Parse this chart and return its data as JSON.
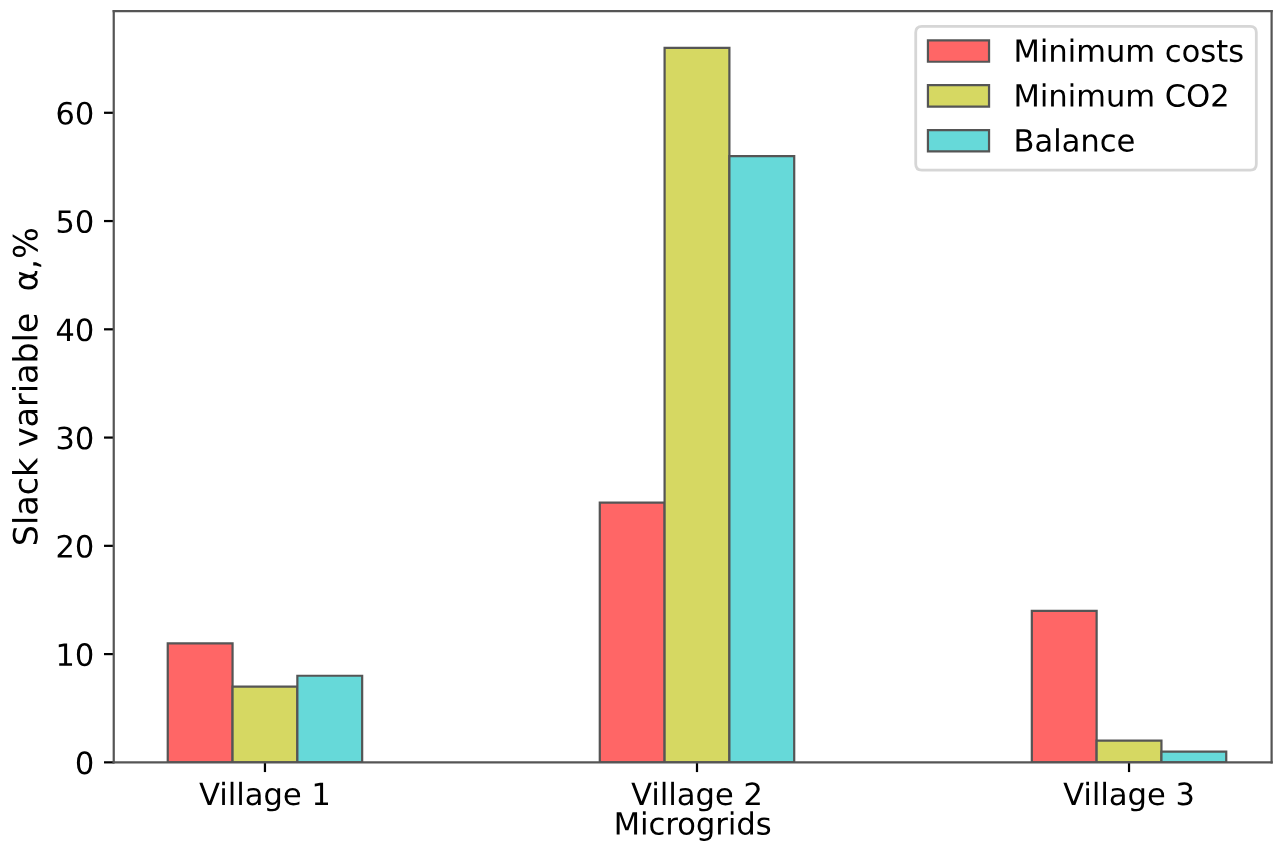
{
  "chart_data": {
    "type": "bar",
    "xlabel": "Microgrids",
    "ylabel": "Slack variable  α,%",
    "categories": [
      "Village 1",
      "Village 2",
      "Village 3"
    ],
    "series": [
      {
        "name": "Minimum costs",
        "color": "#ff6666",
        "values": [
          11,
          24,
          14
        ]
      },
      {
        "name": "Minimum CO2",
        "color": "#d6d862",
        "values": [
          7,
          66,
          2
        ]
      },
      {
        "name": "Balance",
        "color": "#66d9d9",
        "values": [
          8,
          56,
          1
        ]
      }
    ],
    "ylim": [
      0,
      69.4
    ],
    "yticks": [
      0,
      10,
      20,
      30,
      40,
      50,
      60
    ],
    "grid": false,
    "legend": "top right"
  }
}
